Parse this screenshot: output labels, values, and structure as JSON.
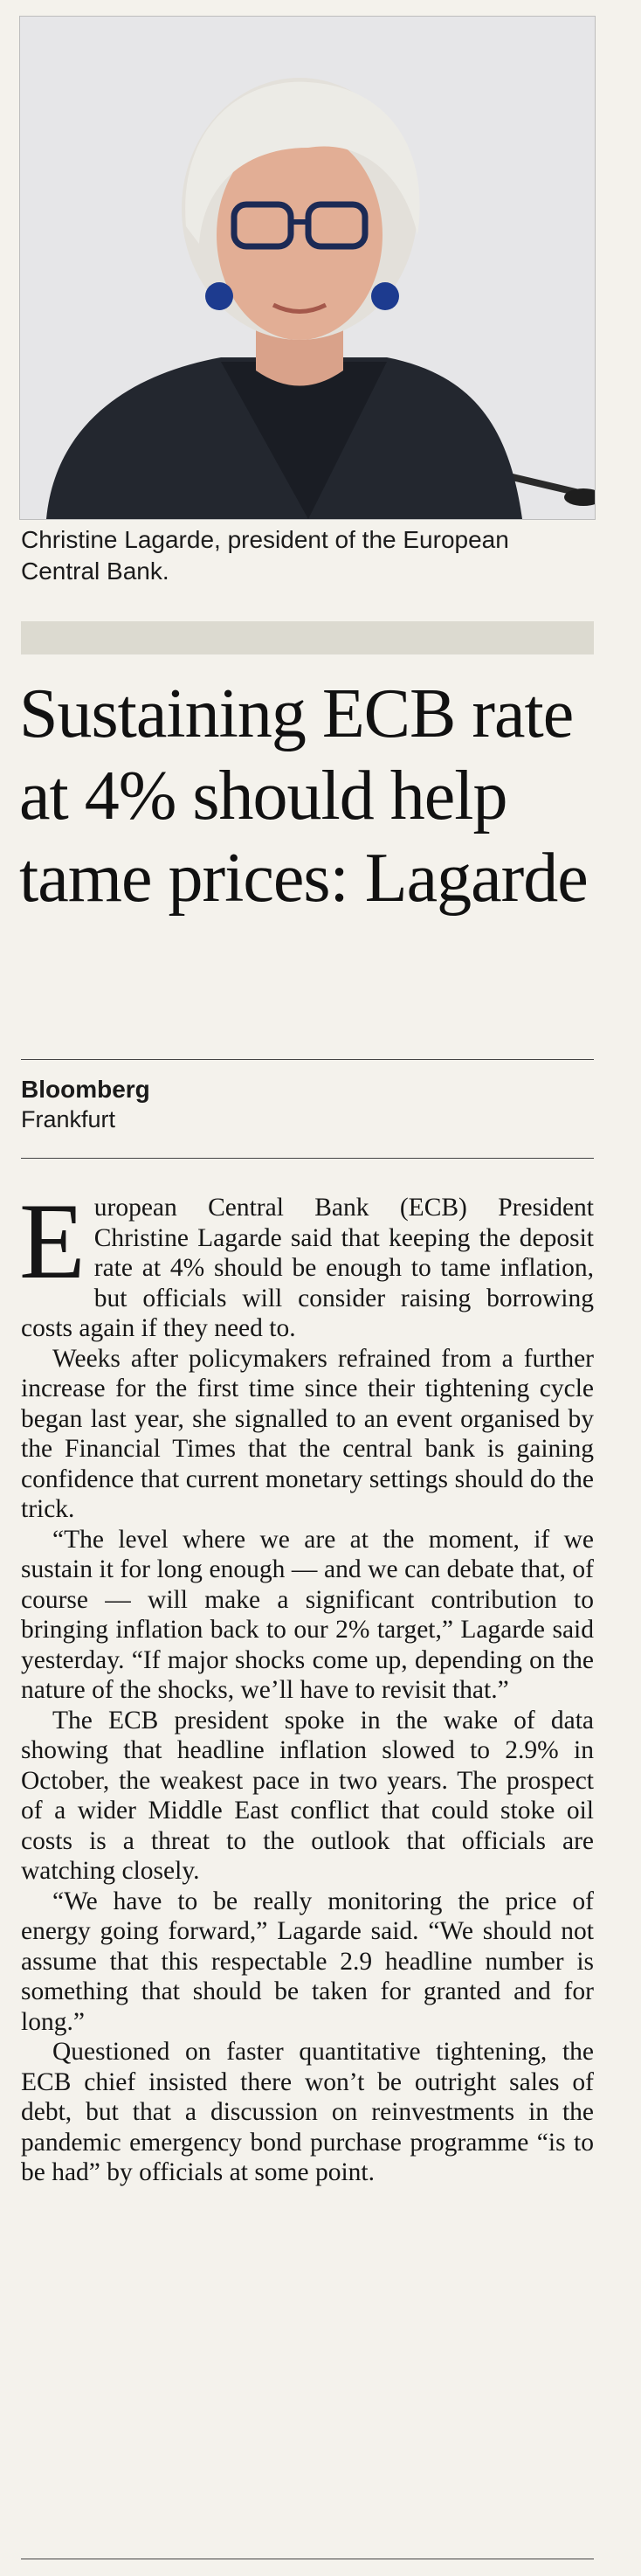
{
  "photo": {
    "caption": "Christine Lagarde, president of the European Central Bank."
  },
  "headline": "Sustaining ECB rate at 4% should help tame prices: Lagarde",
  "byline": {
    "source": "Bloomberg",
    "location": "Frankfurt"
  },
  "article": {
    "drop_cap": "E",
    "first_paragraph_rest": "uropean Central Bank (ECB) President Christine Lagarde said that keeping the deposit rate at 4% should be enough to tame inflation, but officials will consider raising borrowing costs again if they need to.",
    "paragraphs": [
      "Weeks after policymakers refrained from a further increase for the first time since their tightening cycle began last year, she signalled to an event organised by the Financial Times that the central bank is gaining confidence that current monetary settings should do the trick.",
      "“The level where we are at the moment, if we sustain it for long enough — and we can debate that, of course — will make a significant contribution to bringing inflation back to our 2% target,” Lagarde said yesterday. “If major shocks come up, depending on the nature of the shocks, we’ll have to revisit that.”",
      "The ECB president spoke in the wake of data showing that headline inflation slowed to 2.9% in October, the weakest pace in two years. The prospect of a wider Middle East conflict that could stoke oil costs is a threat to the outlook that officials are watching closely.",
      "“We have to be really monitoring the price of energy going forward,” Lagarde said. “We should not assume that this respectable 2.9 headline number is something that should be taken for granted and for long.”",
      "Questioned on faster quantitative tightening, the ECB chief insisted there won’t be outright sales of debt, but that a discussion on reinvestments in the pandemic emergency bond purchase programme “is to be had” by officials at some point."
    ]
  }
}
